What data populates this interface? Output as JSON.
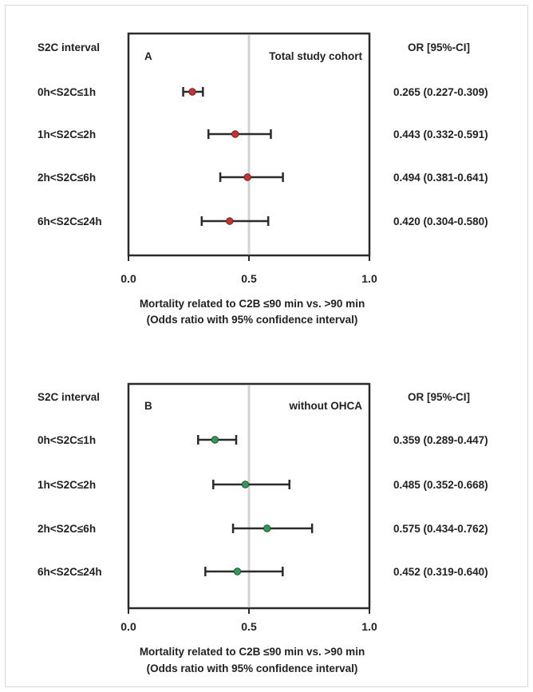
{
  "chart_data": [
    {
      "type": "forest",
      "panel_letter": "A",
      "title": "Total study cohort",
      "left_header": "S2C interval",
      "right_header": "OR [95%-CI]",
      "categories": [
        "0h<S2C≤1h",
        "1h<S2C≤2h",
        "2h<S2C≤6h",
        "6h<S2C≤24h"
      ],
      "or": [
        0.265,
        0.443,
        0.494,
        0.42
      ],
      "ci_low": [
        0.227,
        0.332,
        0.381,
        0.304
      ],
      "ci_high": [
        0.309,
        0.591,
        0.641,
        0.58
      ],
      "or_labels": [
        "0.265 (0.227-0.309)",
        "0.443 (0.332-0.591)",
        "0.494 (0.381-0.641)",
        "0.420 (0.304-0.580)"
      ],
      "xlim": [
        0.0,
        1.0
      ],
      "xticks": [
        "0.0",
        "0.5",
        "1.0"
      ],
      "reference_line": 0.5,
      "xlabel": "Mortality related to C2B ≤90 min vs. >90 min",
      "xlabel2": "(Odds ratio with 95% confidence interval)",
      "marker_color": "#d62b2b"
    },
    {
      "type": "forest",
      "panel_letter": "B",
      "title": "without OHCA",
      "left_header": "S2C interval",
      "right_header": "OR [95%-CI]",
      "categories": [
        "0h<S2C≤1h",
        "1h<S2C≤2h",
        "2h<S2C≤6h",
        "6h<S2C≤24h"
      ],
      "or": [
        0.359,
        0.485,
        0.575,
        0.452
      ],
      "ci_low": [
        0.289,
        0.352,
        0.434,
        0.319
      ],
      "ci_high": [
        0.447,
        0.668,
        0.762,
        0.64
      ],
      "or_labels": [
        "0.359 (0.289-0.447)",
        "0.485 (0.352-0.668)",
        "0.575 (0.434-0.762)",
        "0.452 (0.319-0.640)"
      ],
      "xlim": [
        0.0,
        1.0
      ],
      "xticks": [
        "0.0",
        "0.5",
        "1.0"
      ],
      "reference_line": 0.5,
      "xlabel": "Mortality related to C2B ≤90 min vs. >90 min",
      "xlabel2": "(Odds ratio with 95% confidence interval)",
      "marker_color": "#23a050"
    }
  ]
}
